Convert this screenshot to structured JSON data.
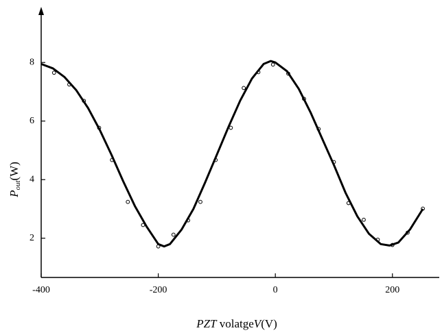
{
  "chart_data": {
    "type": "scatter",
    "x_label": [
      {
        "text": "PZT",
        "italic": true
      },
      {
        "text": " volatge",
        "italic": false
      },
      {
        "text": "V",
        "italic": true
      },
      {
        "text": "(V)",
        "italic": false
      }
    ],
    "y_label": {
      "main": "P",
      "sub": "out",
      "unit": "(W)"
    },
    "xlim": [
      -400,
      280
    ],
    "ylim": [
      0.66,
      9.9
    ],
    "xticks": [
      -400,
      -200,
      0,
      200
    ],
    "yticks": [
      2,
      4,
      6,
      8
    ],
    "series": [
      {
        "style": "marker",
        "color": "#000",
        "x": [
          -378,
          -352,
          -327,
          -301,
          -279,
          -252,
          -226,
          -200,
          -174,
          -149,
          -128,
          -102,
          -76,
          -54,
          -29,
          -4,
          22,
          49,
          74,
          100,
          125,
          151,
          175,
          200,
          226,
          252
        ],
        "values": [
          7.65,
          7.25,
          6.69,
          5.77,
          4.67,
          3.24,
          2.45,
          1.72,
          2.12,
          2.61,
          3.24,
          4.67,
          5.77,
          7.13,
          7.67,
          7.93,
          7.62,
          6.76,
          5.73,
          4.6,
          3.2,
          2.63,
          1.95,
          1.77,
          2.19,
          3.01
        ]
      },
      {
        "style": "line",
        "color": "#000",
        "x": [
          -400,
          -380,
          -360,
          -340,
          -320,
          -300,
          -280,
          -260,
          -240,
          -220,
          -200,
          -190,
          -180,
          -160,
          -140,
          -120,
          -100,
          -80,
          -60,
          -40,
          -20,
          -8,
          0,
          20,
          40,
          60,
          80,
          100,
          120,
          140,
          160,
          180,
          195,
          210,
          230,
          252
        ],
        "values": [
          7.95,
          7.8,
          7.5,
          7.05,
          6.45,
          5.7,
          4.85,
          3.95,
          3.1,
          2.4,
          1.8,
          1.72,
          1.8,
          2.3,
          3.0,
          3.9,
          4.85,
          5.8,
          6.7,
          7.45,
          7.95,
          8.05,
          8.0,
          7.7,
          7.1,
          6.3,
          5.4,
          4.5,
          3.55,
          2.75,
          2.15,
          1.8,
          1.75,
          1.85,
          2.3,
          3.0
        ]
      }
    ]
  }
}
